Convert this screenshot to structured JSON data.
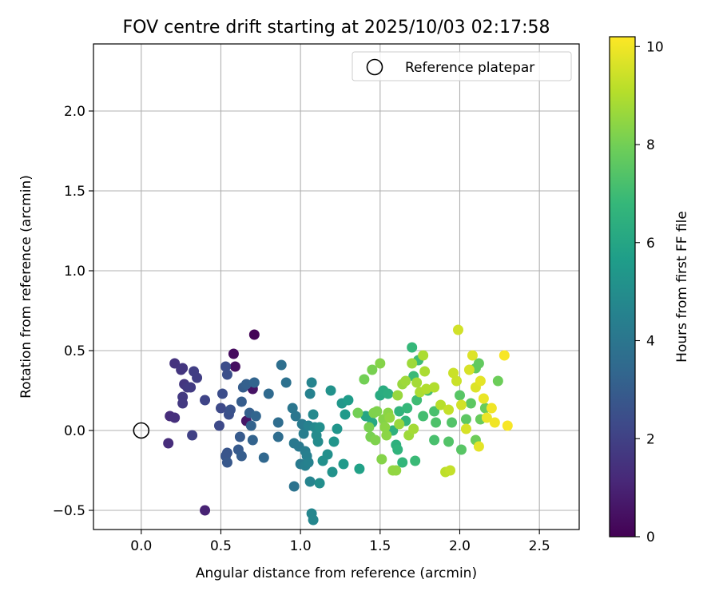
{
  "chart_data": {
    "type": "scatter",
    "title": "FOV centre drift starting at 2025/10/03 02:17:58",
    "xlabel": "Angular distance from reference (arcmin)",
    "ylabel": "Rotation from reference (arcmin)",
    "xlim": [
      -0.3,
      2.75
    ],
    "ylim": [
      -0.62,
      2.42
    ],
    "xticks": [
      0.0,
      0.5,
      1.0,
      1.5,
      2.0,
      2.5
    ],
    "xtick_labels": [
      "0.0",
      "0.5",
      "1.0",
      "1.5",
      "2.0",
      "2.5"
    ],
    "yticks": [
      -0.5,
      0.0,
      0.5,
      1.0,
      1.5,
      2.0
    ],
    "ytick_labels": [
      "−0.5",
      "0.0",
      "0.5",
      "1.0",
      "1.5",
      "2.0"
    ],
    "grid": true,
    "legend": {
      "location": "top-right",
      "entries": [
        "Reference platepar"
      ]
    },
    "reference_point": {
      "label": "Reference platepar",
      "x": 0.0,
      "y": 0.0
    },
    "colorbar": {
      "label": "Hours from first FF file",
      "colormap": "viridis",
      "range": [
        0,
        10.2
      ],
      "ticks": [
        0,
        2,
        4,
        6,
        8,
        10
      ],
      "tick_labels": [
        "0",
        "2",
        "4",
        "6",
        "8",
        "10"
      ],
      "colors": [
        "#440154",
        "#482878",
        "#3e4989",
        "#31688e",
        "#26828e",
        "#1f9e89",
        "#35b779",
        "#6ece58",
        "#b5de2b",
        "#fde725"
      ]
    },
    "points": [
      {
        "x": 0.71,
        "y": 0.6,
        "t": 0.1
      },
      {
        "x": 0.58,
        "y": 0.48,
        "t": 0.3
      },
      {
        "x": 0.59,
        "y": 0.4,
        "t": 0.4
      },
      {
        "x": 0.7,
        "y": 0.26,
        "t": 0.5
      },
      {
        "x": 0.66,
        "y": 0.06,
        "t": 0.6
      },
      {
        "x": 0.4,
        "y": -0.5,
        "t": 1.0
      },
      {
        "x": 0.17,
        "y": -0.08,
        "t": 1.3
      },
      {
        "x": 0.18,
        "y": 0.09,
        "t": 1.3
      },
      {
        "x": 0.21,
        "y": 0.08,
        "t": 1.4
      },
      {
        "x": 0.21,
        "y": 0.42,
        "t": 1.5
      },
      {
        "x": 0.25,
        "y": 0.38,
        "t": 1.6
      },
      {
        "x": 0.26,
        "y": 0.39,
        "t": 1.6
      },
      {
        "x": 0.27,
        "y": 0.29,
        "t": 1.6
      },
      {
        "x": 0.26,
        "y": 0.21,
        "t": 1.7
      },
      {
        "x": 0.26,
        "y": 0.17,
        "t": 1.7
      },
      {
        "x": 0.29,
        "y": 0.27,
        "t": 1.7
      },
      {
        "x": 0.31,
        "y": 0.27,
        "t": 1.8
      },
      {
        "x": 0.33,
        "y": 0.37,
        "t": 1.9
      },
      {
        "x": 0.35,
        "y": 0.33,
        "t": 1.9
      },
      {
        "x": 0.32,
        "y": -0.03,
        "t": 2.0
      },
      {
        "x": 0.4,
        "y": 0.19,
        "t": 2.1
      },
      {
        "x": 0.49,
        "y": 0.03,
        "t": 2.3
      },
      {
        "x": 0.5,
        "y": 0.14,
        "t": 2.3
      },
      {
        "x": 0.51,
        "y": 0.23,
        "t": 2.4
      },
      {
        "x": 0.53,
        "y": 0.4,
        "t": 2.4
      },
      {
        "x": 0.54,
        "y": 0.35,
        "t": 2.5
      },
      {
        "x": 0.55,
        "y": 0.1,
        "t": 2.5
      },
      {
        "x": 0.56,
        "y": 0.13,
        "t": 2.6
      },
      {
        "x": 0.54,
        "y": -0.14,
        "t": 2.7
      },
      {
        "x": 0.53,
        "y": -0.16,
        "t": 2.7
      },
      {
        "x": 0.54,
        "y": -0.2,
        "t": 2.8
      },
      {
        "x": 0.61,
        "y": -0.12,
        "t": 2.9
      },
      {
        "x": 0.62,
        "y": -0.04,
        "t": 2.9
      },
      {
        "x": 0.63,
        "y": -0.16,
        "t": 3.0
      },
      {
        "x": 0.63,
        "y": 0.18,
        "t": 3.0
      },
      {
        "x": 0.64,
        "y": 0.27,
        "t": 3.0
      },
      {
        "x": 0.66,
        "y": 0.29,
        "t": 3.1
      },
      {
        "x": 0.68,
        "y": 0.11,
        "t": 3.1
      },
      {
        "x": 0.69,
        "y": 0.03,
        "t": 3.2
      },
      {
        "x": 0.7,
        "y": -0.06,
        "t": 3.2
      },
      {
        "x": 0.71,
        "y": 0.3,
        "t": 3.3
      },
      {
        "x": 0.72,
        "y": 0.09,
        "t": 3.3
      },
      {
        "x": 0.77,
        "y": -0.17,
        "t": 3.4
      },
      {
        "x": 0.8,
        "y": 0.23,
        "t": 3.5
      },
      {
        "x": 0.86,
        "y": -0.04,
        "t": 3.6
      },
      {
        "x": 0.86,
        "y": 0.05,
        "t": 3.6
      },
      {
        "x": 0.88,
        "y": 0.41,
        "t": 3.7
      },
      {
        "x": 0.91,
        "y": 0.3,
        "t": 3.8
      },
      {
        "x": 0.96,
        "y": -0.35,
        "t": 3.9
      },
      {
        "x": 0.95,
        "y": 0.14,
        "t": 4.0
      },
      {
        "x": 0.97,
        "y": 0.09,
        "t": 4.0
      },
      {
        "x": 0.96,
        "y": -0.08,
        "t": 4.1
      },
      {
        "x": 0.99,
        "y": -0.1,
        "t": 4.1
      },
      {
        "x": 1.0,
        "y": -0.21,
        "t": 4.2
      },
      {
        "x": 1.01,
        "y": 0.04,
        "t": 4.2
      },
      {
        "x": 1.02,
        "y": -0.02,
        "t": 4.3
      },
      {
        "x": 1.03,
        "y": -0.13,
        "t": 4.3
      },
      {
        "x": 1.03,
        "y": -0.22,
        "t": 4.4
      },
      {
        "x": 1.04,
        "y": -0.16,
        "t": 4.4
      },
      {
        "x": 1.05,
        "y": 0.03,
        "t": 4.5
      },
      {
        "x": 1.05,
        "y": -0.2,
        "t": 4.5
      },
      {
        "x": 1.06,
        "y": 0.23,
        "t": 4.5
      },
      {
        "x": 1.07,
        "y": 0.3,
        "t": 4.6
      },
      {
        "x": 1.06,
        "y": -0.32,
        "t": 4.6
      },
      {
        "x": 1.07,
        "y": -0.52,
        "t": 4.7
      },
      {
        "x": 1.08,
        "y": -0.56,
        "t": 4.7
      },
      {
        "x": 1.08,
        "y": 0.1,
        "t": 4.8
      },
      {
        "x": 1.09,
        "y": 0.02,
        "t": 4.8
      },
      {
        "x": 1.1,
        "y": -0.03,
        "t": 4.9
      },
      {
        "x": 1.11,
        "y": -0.07,
        "t": 4.9
      },
      {
        "x": 1.12,
        "y": -0.33,
        "t": 5.0
      },
      {
        "x": 1.12,
        "y": 0.02,
        "t": 5.0
      },
      {
        "x": 1.14,
        "y": -0.19,
        "t": 5.1
      },
      {
        "x": 1.17,
        "y": -0.15,
        "t": 5.1
      },
      {
        "x": 1.19,
        "y": 0.25,
        "t": 5.2
      },
      {
        "x": 1.2,
        "y": -0.26,
        "t": 5.2
      },
      {
        "x": 1.21,
        "y": -0.07,
        "t": 5.3
      },
      {
        "x": 1.23,
        "y": 0.01,
        "t": 5.3
      },
      {
        "x": 1.26,
        "y": 0.17,
        "t": 5.4
      },
      {
        "x": 1.27,
        "y": -0.21,
        "t": 5.5
      },
      {
        "x": 1.28,
        "y": 0.1,
        "t": 5.5
      },
      {
        "x": 1.3,
        "y": 0.19,
        "t": 5.6
      },
      {
        "x": 1.37,
        "y": -0.24,
        "t": 5.8
      },
      {
        "x": 1.41,
        "y": 0.09,
        "t": 6.0
      },
      {
        "x": 1.45,
        "y": 0.05,
        "t": 6.1
      },
      {
        "x": 1.5,
        "y": 0.22,
        "t": 6.2
      },
      {
        "x": 1.52,
        "y": 0.25,
        "t": 6.3
      },
      {
        "x": 1.55,
        "y": 0.23,
        "t": 6.4
      },
      {
        "x": 1.58,
        "y": 0.0,
        "t": 6.5
      },
      {
        "x": 1.6,
        "y": -0.09,
        "t": 6.5
      },
      {
        "x": 1.61,
        "y": -0.12,
        "t": 6.6
      },
      {
        "x": 1.62,
        "y": 0.12,
        "t": 6.6
      },
      {
        "x": 1.64,
        "y": -0.2,
        "t": 6.7
      },
      {
        "x": 1.66,
        "y": 0.06,
        "t": 6.7
      },
      {
        "x": 1.67,
        "y": 0.14,
        "t": 6.8
      },
      {
        "x": 1.7,
        "y": 0.52,
        "t": 6.8
      },
      {
        "x": 1.71,
        "y": 0.34,
        "t": 6.9
      },
      {
        "x": 1.72,
        "y": -0.19,
        "t": 6.9
      },
      {
        "x": 1.73,
        "y": 0.19,
        "t": 7.0
      },
      {
        "x": 1.74,
        "y": 0.44,
        "t": 7.0
      },
      {
        "x": 1.77,
        "y": 0.09,
        "t": 7.1
      },
      {
        "x": 1.8,
        "y": 0.25,
        "t": 7.1
      },
      {
        "x": 1.84,
        "y": -0.06,
        "t": 7.2
      },
      {
        "x": 1.84,
        "y": 0.12,
        "t": 7.2
      },
      {
        "x": 1.85,
        "y": 0.05,
        "t": 7.3
      },
      {
        "x": 1.93,
        "y": -0.07,
        "t": 7.4
      },
      {
        "x": 1.95,
        "y": 0.05,
        "t": 7.4
      },
      {
        "x": 2.0,
        "y": 0.22,
        "t": 7.5
      },
      {
        "x": 2.01,
        "y": -0.12,
        "t": 7.5
      },
      {
        "x": 2.04,
        "y": 0.07,
        "t": 7.6
      },
      {
        "x": 2.07,
        "y": 0.17,
        "t": 7.6
      },
      {
        "x": 2.1,
        "y": 0.39,
        "t": 7.7
      },
      {
        "x": 2.12,
        "y": 0.42,
        "t": 7.7
      },
      {
        "x": 2.13,
        "y": 0.07,
        "t": 7.8
      },
      {
        "x": 2.16,
        "y": 0.14,
        "t": 7.8
      },
      {
        "x": 2.1,
        "y": -0.06,
        "t": 7.9
      },
      {
        "x": 2.24,
        "y": 0.31,
        "t": 7.9
      },
      {
        "x": 1.36,
        "y": 0.11,
        "t": 8.0
      },
      {
        "x": 1.4,
        "y": 0.32,
        "t": 8.0
      },
      {
        "x": 1.43,
        "y": 0.02,
        "t": 8.1
      },
      {
        "x": 1.44,
        "y": -0.04,
        "t": 8.1
      },
      {
        "x": 1.45,
        "y": 0.38,
        "t": 8.1
      },
      {
        "x": 1.46,
        "y": 0.11,
        "t": 8.2
      },
      {
        "x": 1.47,
        "y": -0.06,
        "t": 8.2
      },
      {
        "x": 1.48,
        "y": 0.12,
        "t": 8.2
      },
      {
        "x": 1.5,
        "y": 0.42,
        "t": 8.3
      },
      {
        "x": 1.51,
        "y": -0.18,
        "t": 8.3
      },
      {
        "x": 1.52,
        "y": 0.07,
        "t": 8.3
      },
      {
        "x": 1.53,
        "y": 0.02,
        "t": 8.4
      },
      {
        "x": 1.54,
        "y": -0.03,
        "t": 8.4
      },
      {
        "x": 1.55,
        "y": 0.11,
        "t": 8.4
      },
      {
        "x": 1.56,
        "y": 0.08,
        "t": 8.5
      },
      {
        "x": 1.58,
        "y": -0.25,
        "t": 8.5
      },
      {
        "x": 1.6,
        "y": -0.25,
        "t": 8.5
      },
      {
        "x": 1.61,
        "y": 0.22,
        "t": 8.6
      },
      {
        "x": 1.62,
        "y": 0.04,
        "t": 8.6
      },
      {
        "x": 1.64,
        "y": 0.29,
        "t": 8.6
      },
      {
        "x": 1.66,
        "y": 0.31,
        "t": 8.7
      },
      {
        "x": 1.68,
        "y": -0.03,
        "t": 8.7
      },
      {
        "x": 1.7,
        "y": 0.42,
        "t": 8.7
      },
      {
        "x": 1.71,
        "y": 0.01,
        "t": 8.8
      },
      {
        "x": 1.73,
        "y": 0.3,
        "t": 8.8
      },
      {
        "x": 1.75,
        "y": 0.24,
        "t": 8.9
      },
      {
        "x": 1.77,
        "y": 0.47,
        "t": 8.9
      },
      {
        "x": 1.78,
        "y": 0.37,
        "t": 8.9
      },
      {
        "x": 1.79,
        "y": 0.26,
        "t": 9.0
      },
      {
        "x": 1.84,
        "y": 0.27,
        "t": 9.0
      },
      {
        "x": 1.88,
        "y": 0.16,
        "t": 9.1
      },
      {
        "x": 1.91,
        "y": -0.26,
        "t": 9.2
      },
      {
        "x": 1.93,
        "y": 0.13,
        "t": 9.3
      },
      {
        "x": 1.94,
        "y": -0.25,
        "t": 9.3
      },
      {
        "x": 1.96,
        "y": 0.36,
        "t": 9.4
      },
      {
        "x": 1.98,
        "y": 0.31,
        "t": 9.4
      },
      {
        "x": 1.99,
        "y": 0.63,
        "t": 9.5
      },
      {
        "x": 2.01,
        "y": 0.16,
        "t": 9.5
      },
      {
        "x": 2.04,
        "y": 0.01,
        "t": 9.6
      },
      {
        "x": 2.06,
        "y": 0.38,
        "t": 9.6
      },
      {
        "x": 2.08,
        "y": 0.47,
        "t": 9.7
      },
      {
        "x": 2.1,
        "y": 0.27,
        "t": 9.7
      },
      {
        "x": 2.12,
        "y": -0.1,
        "t": 9.8
      },
      {
        "x": 2.13,
        "y": 0.31,
        "t": 9.8
      },
      {
        "x": 2.15,
        "y": 0.2,
        "t": 9.9
      },
      {
        "x": 2.17,
        "y": 0.08,
        "t": 9.9
      },
      {
        "x": 2.2,
        "y": 0.14,
        "t": 10.0
      },
      {
        "x": 2.22,
        "y": 0.05,
        "t": 10.0
      },
      {
        "x": 2.28,
        "y": 0.47,
        "t": 10.1
      },
      {
        "x": 2.3,
        "y": 0.03,
        "t": 10.1
      }
    ]
  }
}
